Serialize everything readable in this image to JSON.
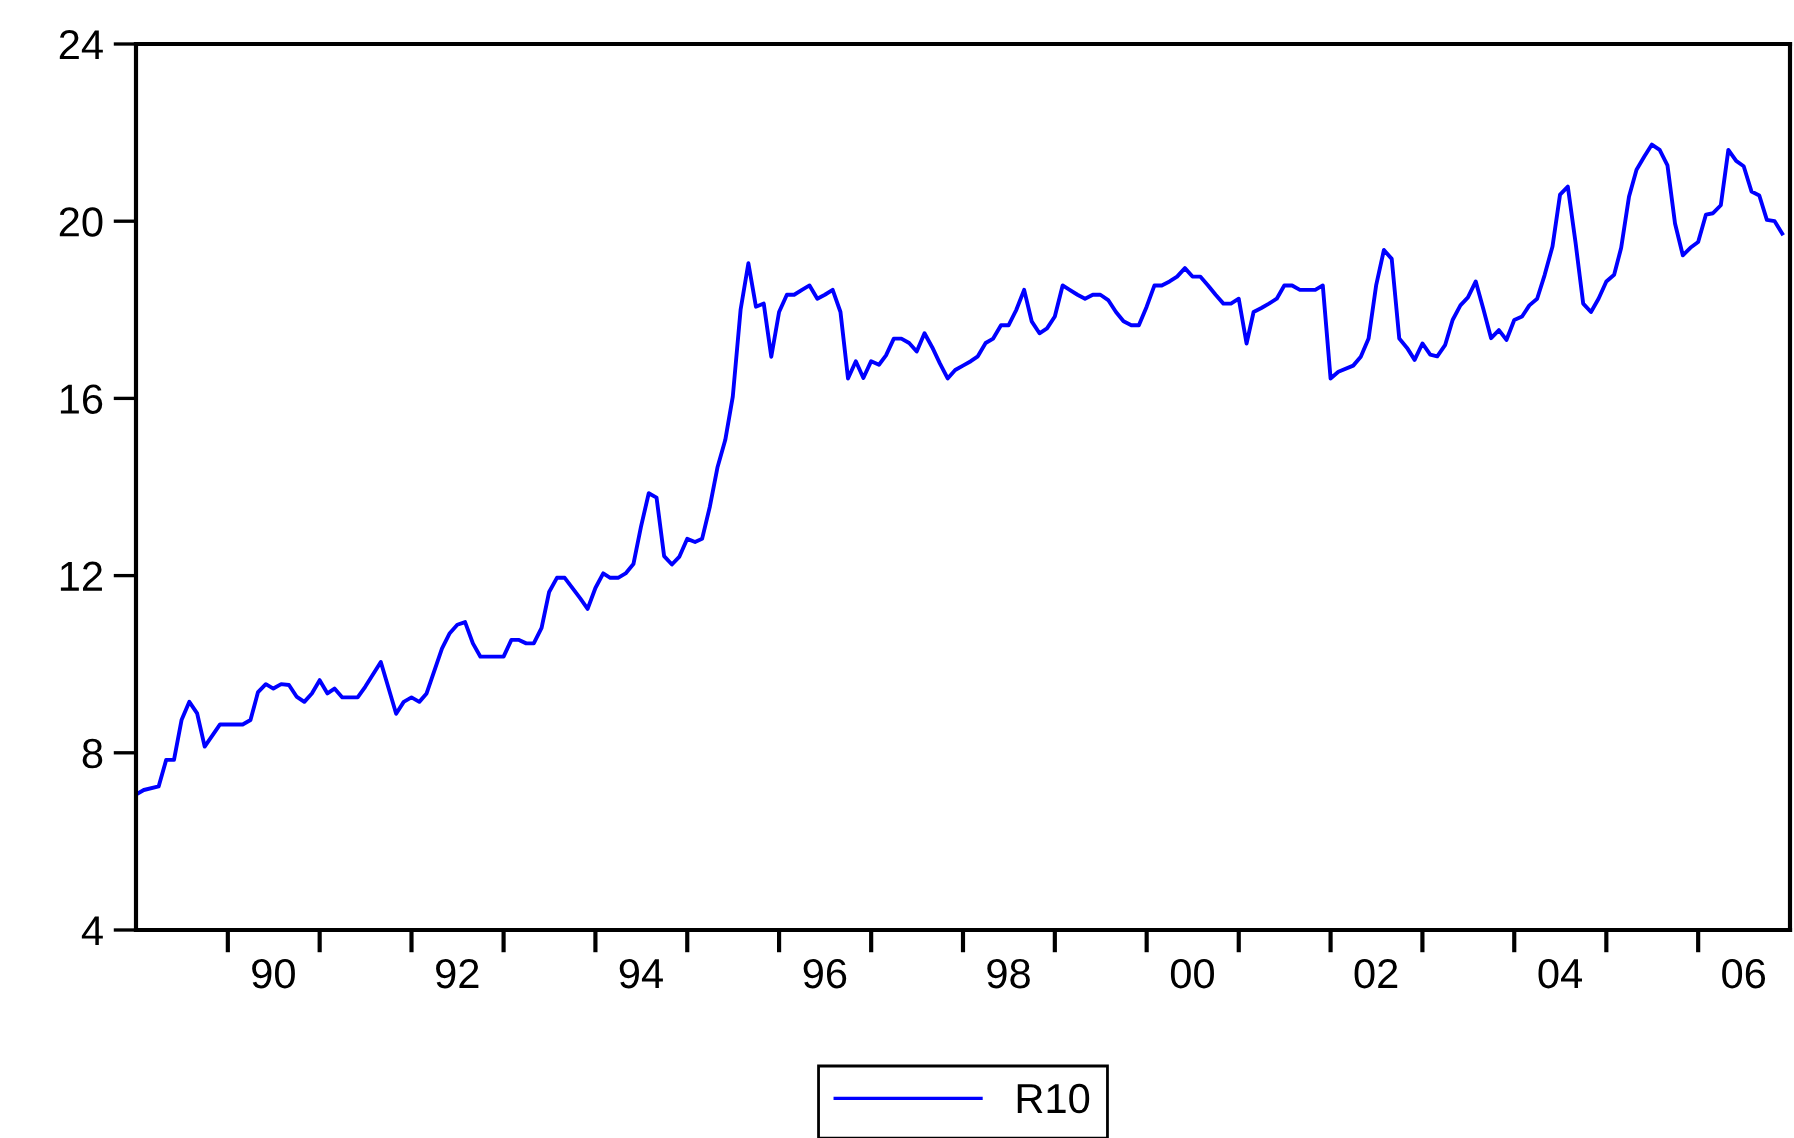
{
  "chart_data": {
    "type": "line",
    "legend": "bottom",
    "grid": false,
    "marker": "none",
    "line_style": "solid",
    "xlim": [
      "1989-01",
      "2007-01"
    ],
    "ylim": [
      4,
      24
    ],
    "yticks": [
      4,
      8,
      12,
      16,
      20,
      24
    ],
    "xticks": [
      {
        "value": "1990-01",
        "label": null
      },
      {
        "value": "1990-07",
        "label": "90"
      },
      {
        "value": "1991-01",
        "label": null
      },
      {
        "value": "1992-01",
        "label": null
      },
      {
        "value": "1992-07",
        "label": "92"
      },
      {
        "value": "1993-01",
        "label": null
      },
      {
        "value": "1994-01",
        "label": null
      },
      {
        "value": "1994-07",
        "label": "94"
      },
      {
        "value": "1995-01",
        "label": null
      },
      {
        "value": "1996-01",
        "label": null
      },
      {
        "value": "1996-07",
        "label": "96"
      },
      {
        "value": "1997-01",
        "label": null
      },
      {
        "value": "1998-01",
        "label": null
      },
      {
        "value": "1998-07",
        "label": "98"
      },
      {
        "value": "1999-01",
        "label": null
      },
      {
        "value": "2000-01",
        "label": null
      },
      {
        "value": "2000-07",
        "label": "00"
      },
      {
        "value": "2001-01",
        "label": null
      },
      {
        "value": "2002-01",
        "label": null
      },
      {
        "value": "2002-07",
        "label": "02"
      },
      {
        "value": "2003-01",
        "label": null
      },
      {
        "value": "2004-01",
        "label": null
      },
      {
        "value": "2004-07",
        "label": "04"
      },
      {
        "value": "2005-01",
        "label": null
      },
      {
        "value": "2006-01",
        "label": null
      },
      {
        "value": "2006-07",
        "label": "06"
      }
    ],
    "series": [
      {
        "name": "R10",
        "color": "#0000ff",
        "x": [
          "1989-01",
          "1989-02",
          "1989-04",
          "1989-05",
          "1989-06",
          "1989-07",
          "1989-08",
          "1989-09",
          "1989-10",
          "1989-12",
          "1990-03",
          "1990-04",
          "1990-05",
          "1990-06",
          "1990-07",
          "1990-08",
          "1990-09",
          "1990-10",
          "1990-11",
          "1990-12",
          "1991-01",
          "1991-02",
          "1991-03",
          "1991-04",
          "1991-06",
          "1991-07",
          "1991-09",
          "1991-11",
          "1991-12",
          "1992-01",
          "1992-02",
          "1992-03",
          "1992-05",
          "1992-06",
          "1992-07",
          "1992-08",
          "1992-09",
          "1992-10",
          "1993-01",
          "1993-02",
          "1993-03",
          "1993-04",
          "1993-05",
          "1993-06",
          "1993-07",
          "1993-08",
          "1993-09",
          "1993-11",
          "1993-12",
          "1994-01",
          "1994-02",
          "1994-03",
          "1994-04",
          "1994-05",
          "1994-06",
          "1994-07",
          "1994-08",
          "1994-09",
          "1994-10",
          "1994-11",
          "1994-12",
          "1995-01",
          "1995-02",
          "1995-03",
          "1995-04",
          "1995-05",
          "1995-06",
          "1995-07",
          "1995-08",
          "1995-09",
          "1995-10",
          "1995-11",
          "1995-12",
          "1996-01",
          "1996-02",
          "1996-03",
          "1996-04",
          "1996-05",
          "1996-06",
          "1996-07",
          "1996-08",
          "1996-09",
          "1996-10",
          "1996-11",
          "1996-12",
          "1997-01",
          "1997-02",
          "1997-03",
          "1997-04",
          "1997-05",
          "1997-06",
          "1997-07",
          "1997-08",
          "1997-09",
          "1997-10",
          "1997-11",
          "1997-12",
          "1998-01",
          "1998-02",
          "1998-03",
          "1998-04",
          "1998-05",
          "1998-06",
          "1998-07",
          "1998-08",
          "1998-09",
          "1998-10",
          "1998-11",
          "1998-12",
          "1999-01",
          "1999-02",
          "1999-03",
          "1999-04",
          "1999-05",
          "1999-06",
          "1999-07",
          "1999-08",
          "1999-09",
          "1999-10",
          "1999-11",
          "1999-12",
          "2000-01",
          "2000-02",
          "2000-03",
          "2000-04",
          "2000-05",
          "2000-06",
          "2000-07",
          "2000-08",
          "2000-09",
          "2000-10",
          "2000-11",
          "2000-12",
          "2001-01",
          "2001-02",
          "2001-03",
          "2001-04",
          "2001-05",
          "2001-06",
          "2001-07",
          "2001-08",
          "2001-09",
          "2001-10",
          "2001-11",
          "2001-12",
          "2002-01",
          "2002-02",
          "2002-04",
          "2002-05",
          "2002-06",
          "2002-07",
          "2002-08",
          "2002-09",
          "2002-10",
          "2002-11",
          "2002-12",
          "2003-01",
          "2003-02",
          "2003-03",
          "2003-04",
          "2003-05",
          "2003-06",
          "2003-07",
          "2003-08",
          "2003-09",
          "2003-10",
          "2003-11",
          "2003-12",
          "2004-01",
          "2004-02",
          "2004-03",
          "2004-04",
          "2004-05",
          "2004-06",
          "2004-07",
          "2004-08",
          "2004-09",
          "2004-10",
          "2004-11",
          "2004-12",
          "2005-01",
          "2005-02",
          "2005-03",
          "2005-04",
          "2005-05",
          "2005-06",
          "2005-07",
          "2005-08",
          "2005-09",
          "2005-10",
          "2005-11",
          "2005-12",
          "2006-01",
          "2006-02",
          "2006-03",
          "2006-04",
          "2006-05",
          "2006-06",
          "2006-07",
          "2006-08",
          "2006-09",
          "2006-10",
          "2006-11",
          "2006-12"
        ],
        "values": [
          7.06,
          7.16,
          7.24,
          7.84,
          7.84,
          8.74,
          9.15,
          8.89,
          8.14,
          8.64,
          8.64,
          8.74,
          9.37,
          9.55,
          9.45,
          9.55,
          9.53,
          9.27,
          9.15,
          9.34,
          9.64,
          9.34,
          9.45,
          9.25,
          9.25,
          9.49,
          10.05,
          8.88,
          9.15,
          9.25,
          9.15,
          9.34,
          10.35,
          10.7,
          10.89,
          10.95,
          10.47,
          10.17,
          10.17,
          10.55,
          10.55,
          10.47,
          10.47,
          10.82,
          11.63,
          11.95,
          11.95,
          11.49,
          11.25,
          11.72,
          12.05,
          11.95,
          11.95,
          12.05,
          12.26,
          13.1,
          13.86,
          13.76,
          12.44,
          12.25,
          12.43,
          12.83,
          12.76,
          12.83,
          13.56,
          14.44,
          15.06,
          16.04,
          18.0,
          19.05,
          18.07,
          18.14,
          16.94,
          17.95,
          18.34,
          18.34,
          18.45,
          18.55,
          18.25,
          18.34,
          18.45,
          17.95,
          16.45,
          16.84,
          16.46,
          16.84,
          16.76,
          16.97,
          17.35,
          17.35,
          17.25,
          17.06,
          17.47,
          17.15,
          16.79,
          16.45,
          16.64,
          16.74,
          16.84,
          16.95,
          17.25,
          17.35,
          17.65,
          17.65,
          18.0,
          18.45,
          17.74,
          17.47,
          17.58,
          17.85,
          18.55,
          18.45,
          18.34,
          18.25,
          18.34,
          18.34,
          18.22,
          17.95,
          17.74,
          17.65,
          17.65,
          18.07,
          18.55,
          18.55,
          18.64,
          18.75,
          18.94,
          18.75,
          18.75,
          18.55,
          18.34,
          18.14,
          18.14,
          18.25,
          17.24,
          17.95,
          18.04,
          18.14,
          18.25,
          18.55,
          18.55,
          18.45,
          18.45,
          18.45,
          18.55,
          16.45,
          16.6,
          16.74,
          16.94,
          17.35,
          18.55,
          19.35,
          19.15,
          17.35,
          17.14,
          16.87,
          17.24,
          16.99,
          16.95,
          17.2,
          17.77,
          18.1,
          18.28,
          18.64,
          18.0,
          17.36,
          17.54,
          17.32,
          17.77,
          17.85,
          18.1,
          18.25,
          18.79,
          19.43,
          20.6,
          20.78,
          19.5,
          18.14,
          17.95,
          18.25,
          18.64,
          18.79,
          19.4,
          20.55,
          21.16,
          21.46,
          21.73,
          21.61,
          21.26,
          19.95,
          19.23,
          19.4,
          19.53,
          20.15,
          20.18,
          20.36,
          21.61,
          21.36,
          21.24,
          20.67,
          20.58,
          20.03,
          20.0,
          19.72
        ]
      }
    ]
  }
}
